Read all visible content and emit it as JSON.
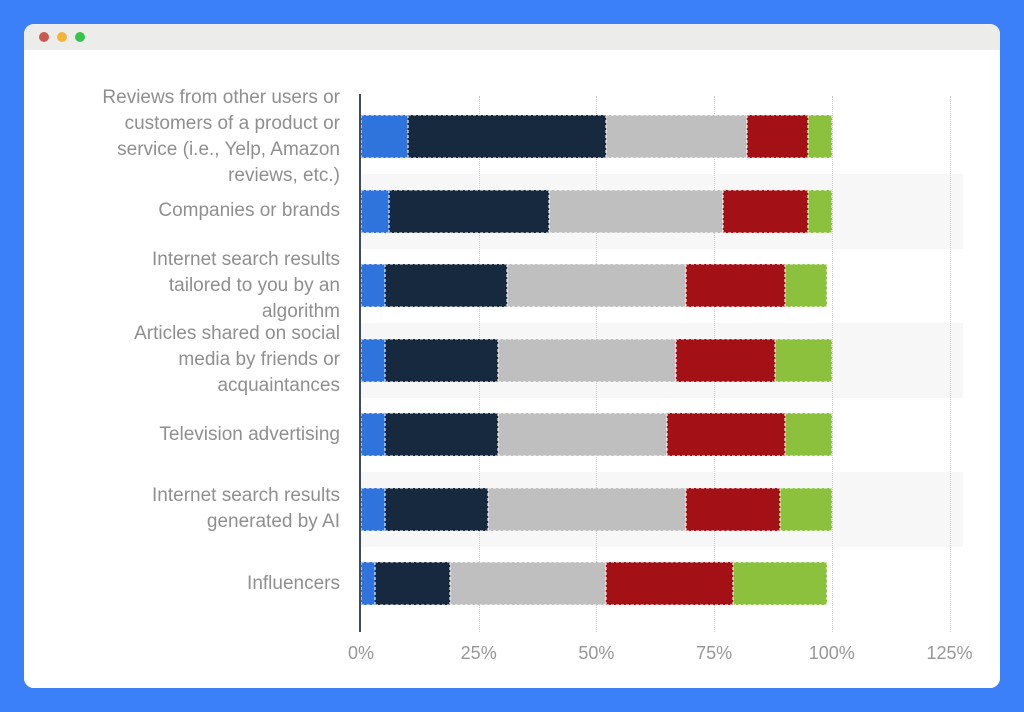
{
  "window": {
    "traffic_lights": [
      {
        "name": "close",
        "color": "#C75B51"
      },
      {
        "name": "minimize",
        "color": "#F3B43A"
      },
      {
        "name": "zoom",
        "color": "#38C34E"
      }
    ],
    "titlebar_color": "#ECECEA",
    "frame_color": "#3B80F8"
  },
  "chart_data": {
    "type": "bar",
    "stacked": true,
    "orientation": "horizontal",
    "title": "",
    "xlabel": "",
    "ylabel": "",
    "categories": [
      "Reviews from other users or\ncustomers of a product or\nservice (i.e., Yelp, Amazon\nreviews, etc.)",
      "Companies or brands",
      "Internet search results\ntailored to you by an\nalgorithm",
      "Articles shared on social\nmedia by friends or\nacquaintances",
      "Television advertising",
      "Internet search results\ngenerated by AI",
      "Influencers"
    ],
    "series": [
      {
        "name": "segment-blue",
        "color": "#2E74DC",
        "values": [
          10,
          6,
          5,
          5,
          5,
          5,
          3
        ]
      },
      {
        "name": "segment-dark-navy",
        "color": "#16293E",
        "values": [
          42,
          34,
          26,
          24,
          24,
          22,
          16
        ]
      },
      {
        "name": "segment-gray",
        "color": "#BFBFBF",
        "values": [
          30,
          37,
          38,
          38,
          36,
          42,
          33
        ]
      },
      {
        "name": "segment-dark-red",
        "color": "#A31015",
        "values": [
          13,
          18,
          21,
          21,
          25,
          20,
          27
        ]
      },
      {
        "name": "segment-green",
        "color": "#8BC13C",
        "values": [
          5,
          5,
          9,
          12,
          10,
          11,
          20
        ]
      }
    ],
    "x_ticks": [
      "0%",
      "25%",
      "50%",
      "75%",
      "100%",
      "125%"
    ],
    "x_tick_values": [
      0,
      25,
      50,
      75,
      100,
      125
    ],
    "xlim": [
      0,
      128
    ],
    "grid": "dotted-vertical",
    "legend": "none",
    "row_band_color": "#F7F7F7",
    "axis_color": "#3E4C59"
  }
}
